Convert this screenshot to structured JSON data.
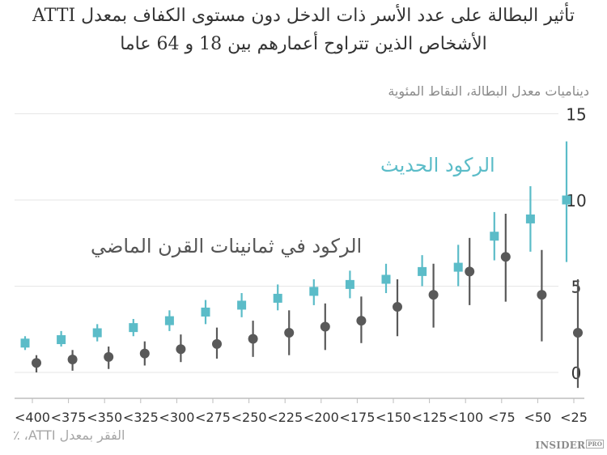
{
  "title": {
    "line1": "تأثير البطالة على عدد الأسر ذات الدخل دون مستوى الكفاف بمعدل ATTI",
    "line2": "الأشخاص الذين تتراوح أعمارهم بين 18 و 64 عاما"
  },
  "axes": {
    "ylabel": "ديناميات معدل البطالة، النقاط المئوية",
    "xlabel": "الفقر بمعدل ATTI، ٪"
  },
  "annotations": {
    "recent": "الركود الحديث",
    "eighties": "الركود في ثمانينات القرن الماضي"
  },
  "logo": {
    "text": "INSIDER",
    "badge": "PRO"
  },
  "colors": {
    "recent": "#5bbcc8",
    "eighties": "#595959",
    "grid": "#e6e6e6",
    "axis": "#bdbdbd",
    "tick_text": "#333333"
  },
  "chart_data": {
    "type": "scatter",
    "title": "تأثير البطالة على عدد الأسر ذات الدخل دون مستوى الكفاف بمعدل ATTI — الأشخاص الذين تتراوح أعمارهم بين 18 و 64 عاما",
    "xlabel": "الفقر بمعدل ATTI، ٪",
    "ylabel": "ديناميات معدل البطالة، النقاط المئوية",
    "categories": [
      "<400",
      "<375",
      "<350",
      "<325",
      "<300",
      "<275",
      "<250",
      "<225",
      "<200",
      "<175",
      "<150",
      "<125",
      "<100",
      "<75",
      "<50",
      "<25"
    ],
    "yticks": [
      0,
      5,
      10,
      15
    ],
    "ylim": [
      -1,
      15
    ],
    "grid": true,
    "y_axis_position": "right",
    "series": [
      {
        "name": "الركود الحديث",
        "marker": "square",
        "values": [
          1.7,
          1.9,
          2.3,
          2.6,
          3.0,
          3.5,
          3.9,
          4.3,
          4.7,
          5.1,
          5.4,
          5.85,
          6.1,
          7.9,
          8.9,
          10.0
        ],
        "low": [
          1.3,
          1.5,
          1.8,
          2.1,
          2.4,
          2.8,
          3.2,
          3.6,
          3.9,
          4.3,
          4.6,
          5.0,
          5.0,
          6.5,
          7.0,
          6.4
        ],
        "high": [
          2.1,
          2.4,
          2.8,
          3.1,
          3.6,
          4.2,
          4.6,
          5.1,
          5.4,
          5.9,
          6.3,
          6.8,
          7.4,
          9.3,
          10.8,
          13.4
        ]
      },
      {
        "name": "الركود في ثمانينات القرن الماضي",
        "marker": "circle",
        "values": [
          0.55,
          0.75,
          0.9,
          1.1,
          1.35,
          1.65,
          1.95,
          2.3,
          2.65,
          3.0,
          3.8,
          4.5,
          5.85,
          6.7,
          4.5,
          2.3
        ],
        "low": [
          0.0,
          0.1,
          0.2,
          0.4,
          0.6,
          0.8,
          0.9,
          1.0,
          1.3,
          1.7,
          2.1,
          2.6,
          3.9,
          4.1,
          1.8,
          -0.9
        ],
        "high": [
          1.0,
          1.3,
          1.5,
          1.8,
          2.2,
          2.6,
          3.0,
          3.6,
          4.0,
          4.4,
          5.4,
          6.3,
          7.8,
          9.2,
          7.1,
          5.4
        ]
      }
    ]
  }
}
